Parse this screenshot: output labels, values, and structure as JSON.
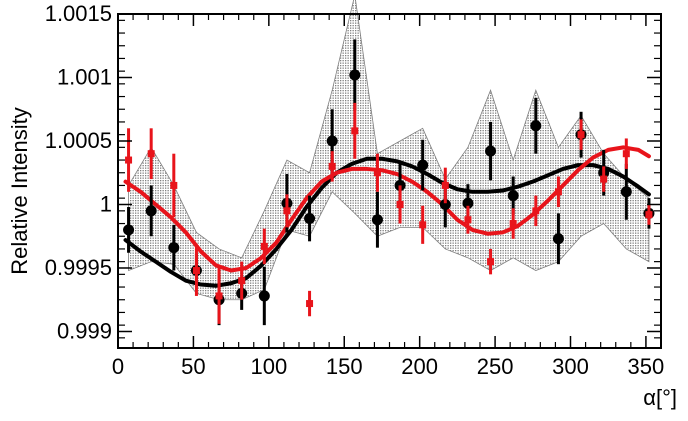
{
  "chart_data": {
    "type": "scatter",
    "title": "",
    "xlabel": "α[°]",
    "ylabel": "Relative Intensity",
    "xlim": [
      0,
      360
    ],
    "ylim": [
      0.99887,
      1.0015
    ],
    "xticks": [
      0,
      50,
      100,
      150,
      200,
      250,
      300,
      350
    ],
    "xtick_labels": [
      "0",
      "50",
      "100",
      "150",
      "200",
      "250",
      "300",
      "350"
    ],
    "yticks": [
      0.999,
      0.9995,
      1.0,
      1.0005,
      1.001,
      1.0015
    ],
    "ytick_labels": [
      "0.999",
      "0.9995",
      "1",
      "1.0005",
      "1.001",
      "1.0015"
    ],
    "grid": false,
    "legend": "none",
    "colors": {
      "black": "#000000",
      "red": "#e8141b",
      "band": "#7f7f7f"
    },
    "band": {
      "x": [
        7,
        22,
        37,
        52,
        67,
        82,
        97,
        112,
        127,
        142,
        157,
        172,
        187,
        202,
        217,
        232,
        247,
        262,
        277,
        292,
        307,
        322,
        337,
        352
      ],
      "lower": [
        0.99948,
        0.99955,
        0.99953,
        0.9993,
        0.99925,
        0.99925,
        0.99933,
        0.9998,
        0.99975,
        1.0001,
        0.99993,
        0.99975,
        0.99982,
        0.99982,
        0.99965,
        0.99958,
        0.99948,
        0.99958,
        0.99948,
        0.99955,
        0.99975,
        0.99985,
        0.99965,
        0.99955
      ],
      "upper": [
        1.00015,
        1.00045,
        1.00015,
        0.99978,
        0.99965,
        0.99958,
        0.99995,
        1.00035,
        1.00025,
        1.0009,
        1.00165,
        1.0004,
        1.0005,
        1.0006,
        1.0002,
        1.00045,
        1.0009,
        1.00035,
        1.0009,
        1.00045,
        1.0007,
        1.0004,
        1.0002,
        1.00005
      ]
    },
    "series": [
      {
        "color": "black",
        "points": [
          {
            "x": 7,
            "y": 0.9998,
            "err": 0.00018
          },
          {
            "x": 22,
            "y": 0.99995,
            "err": 0.0002
          },
          {
            "x": 37,
            "y": 0.99966,
            "err": 0.00018
          },
          {
            "x": 52,
            "y": 0.99948,
            "err": 0.00013
          },
          {
            "x": 67,
            "y": 0.99925,
            "err": 0.0002
          },
          {
            "x": 82,
            "y": 0.9993,
            "err": 0.00013
          },
          {
            "x": 97,
            "y": 0.99928,
            "err": 0.00023
          },
          {
            "x": 112,
            "y": 1.00001,
            "err": 0.00023
          },
          {
            "x": 127,
            "y": 0.99989,
            "err": 0.00018
          },
          {
            "x": 142,
            "y": 1.0005,
            "err": 0.00025
          },
          {
            "x": 157,
            "y": 1.00102,
            "err": 0.00028
          },
          {
            "x": 172,
            "y": 0.99988,
            "err": 0.00022
          },
          {
            "x": 187,
            "y": 1.00015,
            "err": 0.00018
          },
          {
            "x": 202,
            "y": 1.00031,
            "err": 0.0002
          },
          {
            "x": 217,
            "y": 1.0,
            "err": 0.00018
          },
          {
            "x": 232,
            "y": 1.00001,
            "err": 0.00015
          },
          {
            "x": 247,
            "y": 1.00042,
            "err": 0.00023
          },
          {
            "x": 262,
            "y": 1.00007,
            "err": 0.00015
          },
          {
            "x": 277,
            "y": 1.00062,
            "err": 0.00022
          },
          {
            "x": 292,
            "y": 0.99973,
            "err": 0.0002
          },
          {
            "x": 307,
            "y": 1.00055,
            "err": 0.00018
          },
          {
            "x": 322,
            "y": 1.00025,
            "err": 0.00018
          },
          {
            "x": 337,
            "y": 1.0001,
            "err": 0.00022
          },
          {
            "x": 352,
            "y": 0.99993,
            "err": 0.00012
          }
        ],
        "curve": {
          "x": [
            5,
            15,
            25,
            35,
            45,
            55,
            65,
            75,
            85,
            95,
            105,
            115,
            125,
            135,
            145,
            155,
            165,
            175,
            185,
            195,
            205,
            215,
            225,
            235,
            245,
            255,
            265,
            275,
            285,
            295,
            305,
            315,
            325,
            335,
            345,
            352
          ],
          "y": [
            0.99972,
            0.99963,
            0.99955,
            0.99947,
            0.9994,
            0.99937,
            0.99936,
            0.99938,
            0.99942,
            0.99952,
            0.99965,
            0.9998,
            0.99998,
            1.00013,
            1.00025,
            1.00032,
            1.00036,
            1.00036,
            1.00034,
            1.0003,
            1.00024,
            1.00017,
            1.00012,
            1.0001,
            1.0001,
            1.00011,
            1.00014,
            1.00018,
            1.00023,
            1.00028,
            1.00031,
            1.00031,
            1.00028,
            1.00022,
            1.00014,
            1.00008
          ]
        }
      },
      {
        "color": "red",
        "points": [
          {
            "x": 7,
            "y": 1.00035,
            "err": 0.00025
          },
          {
            "x": 22,
            "y": 1.0004,
            "err": 0.0002
          },
          {
            "x": 37,
            "y": 1.00015,
            "err": 0.00025
          },
          {
            "x": 52,
            "y": 0.99948,
            "err": 0.0002
          },
          {
            "x": 67,
            "y": 0.99928,
            "err": 0.00022
          },
          {
            "x": 82,
            "y": 0.9994,
            "err": 0.00015
          },
          {
            "x": 97,
            "y": 0.99967,
            "err": 0.00014
          },
          {
            "x": 112,
            "y": 0.99995,
            "err": 0.00013
          },
          {
            "x": 127,
            "y": 0.99922,
            "err": 0.0001
          },
          {
            "x": 142,
            "y": 1.0003,
            "err": 0.00012
          },
          {
            "x": 157,
            "y": 1.00058,
            "err": 0.00022
          },
          {
            "x": 172,
            "y": 1.00025,
            "err": 0.00015
          },
          {
            "x": 187,
            "y": 1.0,
            "err": 0.00015
          },
          {
            "x": 202,
            "y": 0.99984,
            "err": 0.00015
          },
          {
            "x": 217,
            "y": 1.00015,
            "err": 0.00014
          },
          {
            "x": 232,
            "y": 0.99988,
            "err": 0.00011
          },
          {
            "x": 247,
            "y": 0.99955,
            "err": 0.0001
          },
          {
            "x": 262,
            "y": 0.99985,
            "err": 0.00012
          },
          {
            "x": 277,
            "y": 0.99995,
            "err": 0.00012
          },
          {
            "x": 292,
            "y": 1.0001,
            "err": 0.00012
          },
          {
            "x": 307,
            "y": 1.00055,
            "err": 0.00012
          },
          {
            "x": 322,
            "y": 1.0002,
            "err": 0.0001
          },
          {
            "x": 337,
            "y": 1.0004,
            "err": 0.00012
          },
          {
            "x": 352,
            "y": 0.99992,
            "err": 8e-05
          }
        ],
        "curve": {
          "x": [
            5,
            15,
            25,
            35,
            45,
            55,
            65,
            75,
            85,
            95,
            105,
            115,
            125,
            135,
            145,
            155,
            165,
            175,
            185,
            195,
            205,
            215,
            225,
            235,
            245,
            255,
            265,
            275,
            285,
            295,
            305,
            315,
            325,
            335,
            345,
            352
          ],
          "y": [
            1.00018,
            1.0001,
            1.0,
            0.9999,
            0.99978,
            0.99963,
            0.99952,
            0.99948,
            0.9995,
            0.99958,
            0.9997,
            0.99988,
            1.00005,
            1.00018,
            1.00025,
            1.00028,
            1.00028,
            1.00027,
            1.00024,
            1.00018,
            1.0001,
            1.0,
            0.99988,
            0.9998,
            0.99977,
            0.99978,
            0.99983,
            0.99992,
            1.00003,
            1.00015,
            1.00027,
            1.00037,
            1.00043,
            1.00045,
            1.00043,
            1.00038
          ]
        }
      }
    ]
  }
}
